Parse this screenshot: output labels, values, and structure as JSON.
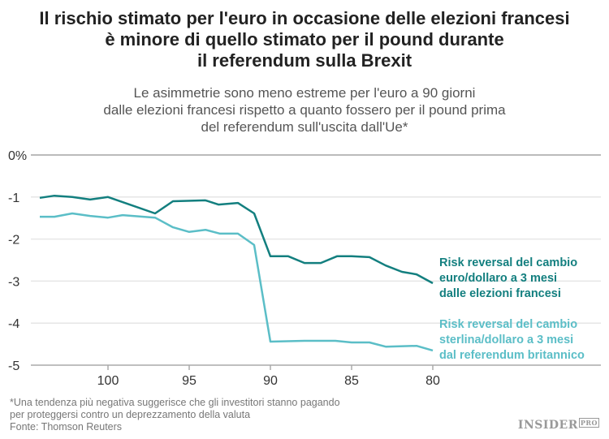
{
  "chart_data": {
    "type": "line",
    "title": "Il rischio stimato per l'euro in occasione delle elezioni francesi\nè minore di quello stimato per il pound durante\nil referendum sulla Brexit",
    "subtitle": "Le asimmetrie sono meno estreme per l'euro a 90 giorni\ndalle elezioni francesi rispetto a quanto fossero per il pound prima\ndel referendum sull'uscita dall'Ue*",
    "xlim": [
      104.2,
      80
    ],
    "ylim": [
      -5,
      0
    ],
    "x_reversed": true,
    "x_ticks": [
      "100",
      "95",
      "90",
      "85",
      "80"
    ],
    "x_tick_values": [
      100,
      95,
      90,
      85,
      80
    ],
    "y_ticks": [
      "0%",
      "-1",
      "-2",
      "-3",
      "-4",
      "-5"
    ],
    "y_tick_values": [
      0,
      -1,
      -2,
      -3,
      -4,
      -5
    ],
    "grid": "horizontal",
    "series": [
      {
        "name": "Risk reversal del cambio\neuro/dollaro a 3 mesi\ndalle elezioni francesi",
        "color": "#137f7f",
        "x": [
          104.2,
          103.3,
          102.2,
          101.1,
          100,
          97.1,
          96,
          94,
          93.2,
          92,
          91,
          90,
          88.9,
          87.9,
          86.9,
          85.9,
          85,
          83.9,
          82.9,
          81.9,
          81,
          80
        ],
        "y": [
          -1.02,
          -0.97,
          -1.0,
          -1.06,
          -1.0,
          -1.39,
          -1.1,
          -1.08,
          -1.18,
          -1.14,
          -1.39,
          -2.41,
          -2.41,
          -2.57,
          -2.57,
          -2.41,
          -2.41,
          -2.43,
          -2.63,
          -2.78,
          -2.84,
          -3.05
        ]
      },
      {
        "name": "Risk reversal del cambio\nsterlina/dollaro a 3 mesi\ndal referendum britannico",
        "color": "#5bbec7",
        "x": [
          104.2,
          103.3,
          102.2,
          101.1,
          100,
          99.1,
          97.1,
          96,
          95,
          94,
          93.1,
          92,
          91,
          90,
          87.9,
          86,
          85,
          83.9,
          82.9,
          81,
          80
        ],
        "y": [
          -1.47,
          -1.47,
          -1.39,
          -1.45,
          -1.49,
          -1.43,
          -1.49,
          -1.72,
          -1.83,
          -1.78,
          -1.87,
          -1.87,
          -2.14,
          -4.44,
          -4.42,
          -4.42,
          -4.46,
          -4.46,
          -4.56,
          -4.54,
          -4.65
        ]
      }
    ]
  },
  "footnote": "*Una tendenza più negativa suggerisce che gli investitori stanno pagando\nper proteggersi contro un deprezzamento della valuta\nFonte: Thomson Reuters",
  "logo": {
    "text": "INSIDER",
    "badge": "PRO"
  }
}
